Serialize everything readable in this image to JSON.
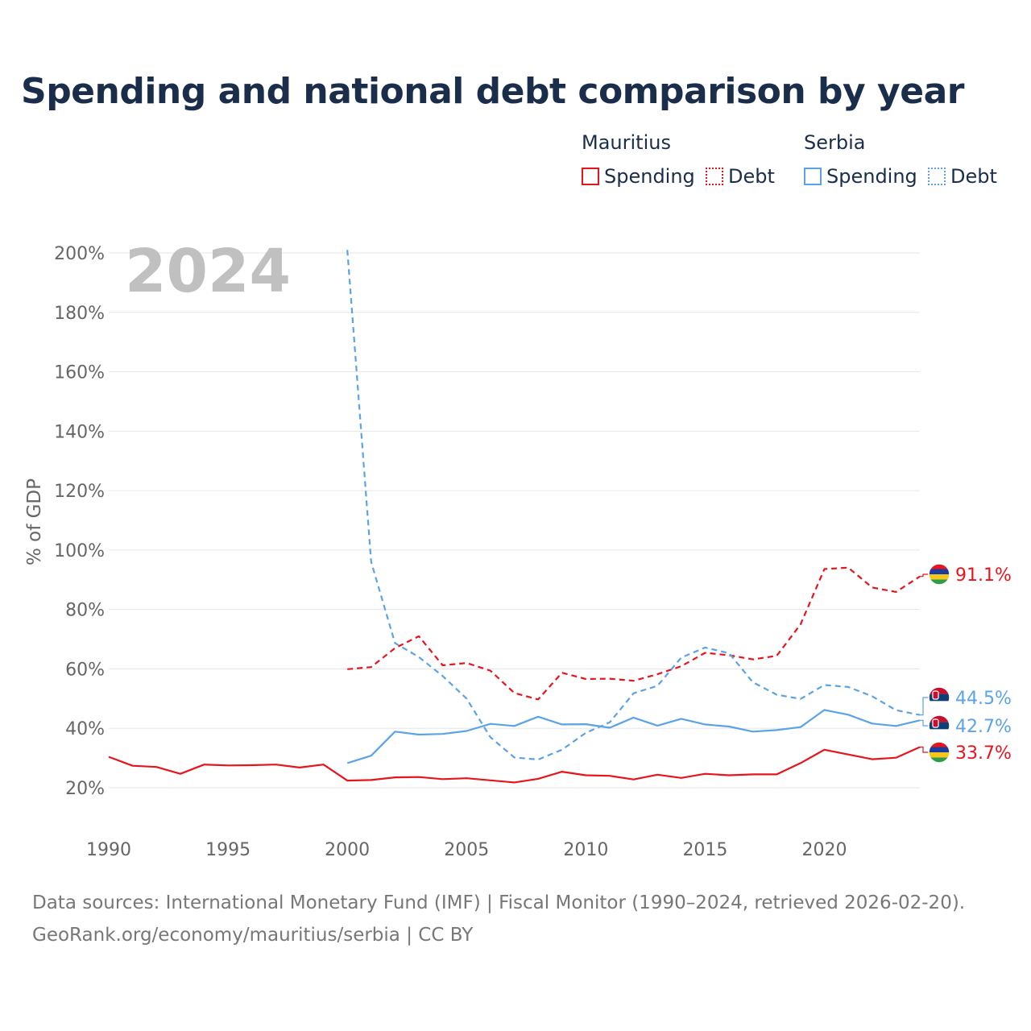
{
  "chart_data": {
    "type": "line",
    "title": "Spending and national debt comparison by year",
    "year_label": "2024",
    "ylabel": "% of GDP",
    "xlabel": "",
    "xlim": [
      1990,
      2024
    ],
    "ylim": [
      10,
      205
    ],
    "x_ticks": [
      {
        "value": 1990,
        "label": "1990"
      },
      {
        "value": 1995,
        "label": "1995"
      },
      {
        "value": 2000,
        "label": "2000"
      },
      {
        "value": 2005,
        "label": "2005"
      },
      {
        "value": 2010,
        "label": "2010"
      },
      {
        "value": 2015,
        "label": "2015"
      },
      {
        "value": 2020,
        "label": "2020"
      }
    ],
    "y_ticks": [
      {
        "value": 20,
        "label": "20%"
      },
      {
        "value": 40,
        "label": "40%"
      },
      {
        "value": 60,
        "label": "60%"
      },
      {
        "value": 80,
        "label": "80%"
      },
      {
        "value": 100,
        "label": "100%"
      },
      {
        "value": 120,
        "label": "120%"
      },
      {
        "value": 140,
        "label": "140%"
      },
      {
        "value": 160,
        "label": "160%"
      },
      {
        "value": 180,
        "label": "180%"
      },
      {
        "value": 200,
        "label": "200%"
      }
    ],
    "series": [
      {
        "name": "Mauritius Spending",
        "country": "Mauritius",
        "metric": "Spending",
        "color": "#e8141b",
        "dashed": false,
        "start": 1990,
        "values": [
          30.4,
          27.4,
          27.0,
          24.7,
          27.8,
          27.5,
          27.6,
          27.8,
          26.8,
          27.8,
          22.4,
          22.6,
          23.5,
          23.6,
          22.9,
          23.2,
          22.5,
          21.8,
          23.0,
          25.4,
          24.2,
          24.0,
          22.8,
          24.4,
          23.3,
          24.7,
          24.2,
          24.5,
          24.5,
          28.3,
          32.8,
          31.2,
          29.6,
          30.1,
          33.7
        ],
        "end_label": "33.7%",
        "flag": "mauritius"
      },
      {
        "name": "Mauritius Debt",
        "country": "Mauritius",
        "metric": "Debt",
        "color": "#e8141b",
        "dashed": true,
        "start": 2000,
        "values": [
          59.9,
          60.6,
          67.0,
          71.0,
          61.2,
          62.0,
          59.4,
          51.9,
          49.7,
          58.7,
          56.6,
          56.7,
          56.0,
          58.2,
          60.9,
          65.4,
          64.6,
          63.2,
          64.4,
          75.0,
          93.6,
          94.1,
          87.4,
          85.9,
          91.1
        ],
        "end_label": "91.1%",
        "flag": "mauritius"
      },
      {
        "name": "Serbia Spending",
        "country": "Serbia",
        "metric": "Spending",
        "color": "#5ba3e6",
        "dashed": false,
        "start": 2000,
        "values": [
          28.3,
          30.8,
          38.9,
          37.9,
          38.1,
          39.1,
          41.5,
          40.8,
          43.9,
          41.3,
          41.4,
          40.2,
          43.6,
          40.9,
          43.2,
          41.3,
          40.6,
          38.9,
          39.4,
          40.4,
          46.2,
          44.6,
          41.6,
          40.8,
          42.7
        ],
        "end_label": "42.7%",
        "flag": "serbia"
      },
      {
        "name": "Serbia Debt",
        "country": "Serbia",
        "metric": "Debt",
        "color": "#5ba3e6",
        "dashed": true,
        "start": 2000,
        "values": [
          201.0,
          96.0,
          68.7,
          64.0,
          57.6,
          50.0,
          37.0,
          30.2,
          29.5,
          32.8,
          38.5,
          42.0,
          51.8,
          54.3,
          63.8,
          67.2,
          65.3,
          55.5,
          51.3,
          49.9,
          54.6,
          53.9,
          50.8,
          46.1,
          44.5
        ],
        "end_label": "44.5%",
        "flag": "serbia"
      }
    ],
    "legend": {
      "groups": [
        {
          "country": "Mauritius",
          "color": "#e8141b",
          "items": [
            "Spending",
            "Debt"
          ]
        },
        {
          "country": "Serbia",
          "color": "#5ba3e6",
          "items": [
            "Spending",
            "Debt"
          ]
        }
      ],
      "placement": "top-right"
    }
  },
  "legend": {
    "mauritius_title": "Mauritius",
    "mauritius_spending": "Spending",
    "mauritius_debt": "Debt",
    "serbia_title": "Serbia",
    "serbia_spending": "Spending",
    "serbia_debt": "Debt"
  },
  "footer": {
    "source": "Data sources: International Monetary Fund (IMF) | Fiscal Monitor (1990–2024, retrieved 2026-02-20).",
    "credit": "GeoRank.org/economy/mauritius/serbia | CC BY"
  },
  "colors": {
    "mauritius": "#e8141b",
    "serbia": "#5ba3e6",
    "title": "#1a2e4c",
    "axis_text": "#666666",
    "grid": "#e6e6e6",
    "year_watermark": "#c0c0c0"
  }
}
